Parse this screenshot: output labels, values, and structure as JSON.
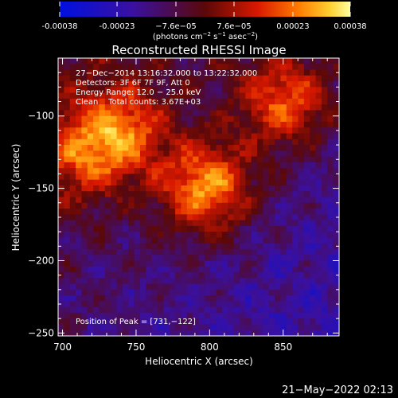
{
  "colorbar": {
    "ticks": [
      "-0.00038",
      "-0.00023",
      "−7.6e−05",
      "7.6e−05",
      "0.00023",
      "0.00038"
    ],
    "tick_values": [
      -0.00038,
      -0.00023,
      -7.6e-05,
      7.6e-05,
      0.00023,
      0.00038
    ],
    "range": [
      -0.00038,
      0.00038
    ],
    "units_main": "(photons cm",
    "units_exp1": "−2",
    "units_mid1": " s",
    "units_exp2": "−1",
    "units_mid2": " asec",
    "units_exp3": "−2",
    "units_end": ")"
  },
  "chart_data": {
    "type": "heatmap",
    "title": "Reconstructed RHESSI Image",
    "xlabel": "Heliocentric X (arcsec)",
    "ylabel": "Heliocentric Y (arcsec)",
    "xlim": [
      697,
      888
    ],
    "ylim": [
      -252,
      -60
    ],
    "xticks": [
      "700",
      "750",
      "800",
      "850"
    ],
    "xtick_values": [
      700,
      750,
      800,
      850
    ],
    "yticks": [
      "−100",
      "−150",
      "−200",
      "−250"
    ],
    "ytick_values": [
      -100,
      -150,
      -200,
      -250
    ],
    "sources": [
      {
        "x": 740,
        "y": -110,
        "relative_intensity": 0.75
      },
      {
        "x": 798,
        "y": -150,
        "relative_intensity": 1.0
      },
      {
        "x": 851,
        "y": -90,
        "relative_intensity": 0.8
      },
      {
        "x": 712,
        "y": -130,
        "relative_intensity": 0.55
      }
    ],
    "peak": [
      731,
      -122
    ]
  },
  "annotations": {
    "time_range": "27−Dec−2014 13:16:32.000 to 13:22:32.000",
    "detectors": "Detectors: 3F 6F 7F 9F, Att 0",
    "energy_range": "Energy Range: 12.0 − 25.0 keV",
    "clean_counts": "Clean    Total counts: 3.67E+03",
    "peak_position": "Position of Peak = [731,−122]"
  },
  "footer": {
    "timestamp": "21−May−2022 02:13"
  }
}
